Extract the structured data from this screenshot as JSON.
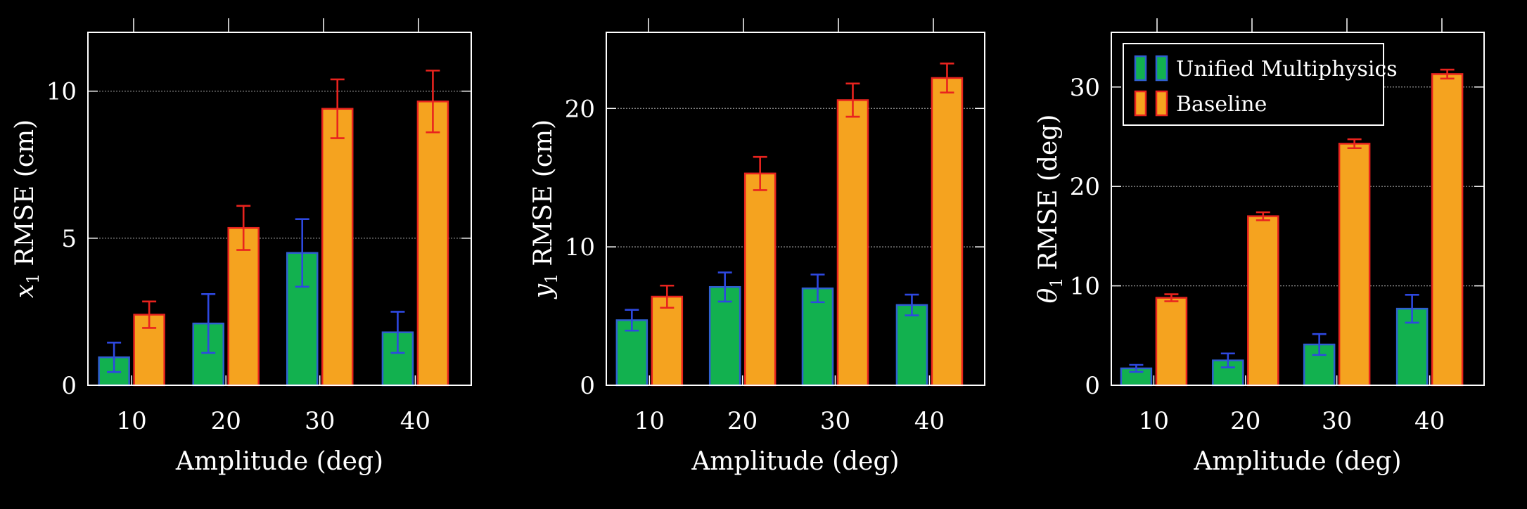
{
  "colors": {
    "background": "#000000",
    "axis": "#ffffff",
    "grid": "#9a9a9a",
    "unified_fill": "#12b14f",
    "unified_edge": "#2f5fd0",
    "unified_error": "#2e48e0",
    "baseline_fill": "#f5a31f",
    "baseline_edge": "#e8231e",
    "baseline_error": "#e8231e"
  },
  "legend": {
    "entries": [
      "Unified Multiphysics",
      "Baseline"
    ],
    "placement": "top-left of third panel"
  },
  "chart_data": [
    {
      "type": "bar",
      "title": "",
      "xlabel": "Amplitude (deg)",
      "ylabel_var": "x",
      "ylabel_sub": "1",
      "ylabel_rest": "RMSE (cm)",
      "categories": [
        "10",
        "20",
        "30",
        "40"
      ],
      "ylim": [
        0,
        12
      ],
      "yticks": [
        0,
        5,
        10
      ],
      "grid_lines": [
        5,
        10
      ],
      "series": [
        {
          "name": "Unified Multiphysics",
          "values": [
            0.95,
            2.1,
            4.5,
            1.8
          ],
          "errors": [
            0.5,
            1.0,
            1.15,
            0.7
          ]
        },
        {
          "name": "Baseline",
          "values": [
            2.4,
            5.35,
            9.4,
            9.65
          ],
          "errors": [
            0.45,
            0.75,
            1.0,
            1.05
          ]
        }
      ]
    },
    {
      "type": "bar",
      "title": "",
      "xlabel": "Amplitude (deg)",
      "ylabel_var": "y",
      "ylabel_sub": "1",
      "ylabel_rest": "RMSE (cm)",
      "categories": [
        "10",
        "20",
        "30",
        "40"
      ],
      "ylim": [
        0,
        25.5
      ],
      "yticks": [
        0,
        10,
        20
      ],
      "grid_lines": [
        10,
        20
      ],
      "series": [
        {
          "name": "Unified Multiphysics",
          "values": [
            4.7,
            7.1,
            7.0,
            5.8
          ],
          "errors": [
            0.75,
            1.05,
            1.0,
            0.75
          ]
        },
        {
          "name": "Baseline",
          "values": [
            6.4,
            15.3,
            20.6,
            22.2
          ],
          "errors": [
            0.8,
            1.2,
            1.2,
            1.05
          ]
        }
      ]
    },
    {
      "type": "bar",
      "title": "",
      "xlabel": "Amplitude (deg)",
      "ylabel_var": "θ",
      "ylabel_sub": "1",
      "ylabel_rest": "RMSE (deg)",
      "categories": [
        "10",
        "20",
        "30",
        "40"
      ],
      "ylim": [
        0,
        35.5
      ],
      "yticks": [
        0,
        10,
        20,
        30
      ],
      "grid_lines": [
        10,
        20,
        30
      ],
      "series": [
        {
          "name": "Unified Multiphysics",
          "values": [
            1.7,
            2.5,
            4.1,
            7.7
          ],
          "errors": [
            0.35,
            0.7,
            1.05,
            1.4
          ]
        },
        {
          "name": "Baseline",
          "values": [
            8.8,
            17.0,
            24.3,
            31.3
          ],
          "errors": [
            0.35,
            0.4,
            0.45,
            0.45
          ]
        }
      ]
    }
  ]
}
